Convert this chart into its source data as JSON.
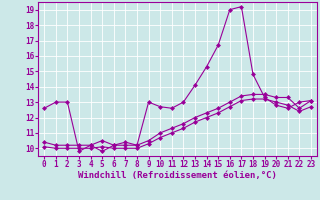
{
  "bg_color": "#cce8e8",
  "line_color": "#990099",
  "xlim": [
    -0.5,
    23.5
  ],
  "ylim": [
    9.5,
    19.5
  ],
  "xticks": [
    0,
    1,
    2,
    3,
    4,
    5,
    6,
    7,
    8,
    9,
    10,
    11,
    12,
    13,
    14,
    15,
    16,
    17,
    18,
    19,
    20,
    21,
    22,
    23
  ],
  "yticks": [
    10,
    11,
    12,
    13,
    14,
    15,
    16,
    17,
    18,
    19
  ],
  "line1_x": [
    0,
    1,
    2,
    3,
    4,
    5,
    6,
    7,
    8,
    9,
    10,
    11,
    12,
    13,
    14,
    15,
    16,
    17,
    18,
    19,
    20,
    21,
    22,
    23
  ],
  "line1_y": [
    12.6,
    13.0,
    13.0,
    9.8,
    10.2,
    9.8,
    10.2,
    10.4,
    10.2,
    13.0,
    12.7,
    12.6,
    13.0,
    14.1,
    15.3,
    16.7,
    19.0,
    19.2,
    14.8,
    13.3,
    12.8,
    12.6,
    13.0,
    13.1
  ],
  "line2_x": [
    0,
    1,
    2,
    3,
    4,
    5,
    6,
    7,
    8,
    9,
    10,
    11,
    12,
    13,
    14,
    15,
    16,
    17,
    18,
    19,
    20,
    21,
    22,
    23
  ],
  "line2_y": [
    10.4,
    10.2,
    10.2,
    10.2,
    10.2,
    10.5,
    10.2,
    10.2,
    10.2,
    10.5,
    11.0,
    11.3,
    11.6,
    12.0,
    12.3,
    12.6,
    13.0,
    13.4,
    13.5,
    13.5,
    13.3,
    13.3,
    12.6,
    13.1
  ],
  "line3_x": [
    0,
    1,
    2,
    3,
    4,
    5,
    6,
    7,
    8,
    9,
    10,
    11,
    12,
    13,
    14,
    15,
    16,
    17,
    18,
    19,
    20,
    21,
    22,
    23
  ],
  "line3_y": [
    10.1,
    10.0,
    10.0,
    10.0,
    10.0,
    10.1,
    10.0,
    10.0,
    10.0,
    10.3,
    10.7,
    11.0,
    11.3,
    11.7,
    12.0,
    12.3,
    12.7,
    13.1,
    13.2,
    13.2,
    13.0,
    12.8,
    12.4,
    12.7
  ],
  "xlabel": "Windchill (Refroidissement éolien,°C)",
  "marker": "D",
  "markersize": 2.0,
  "linewidth": 0.8,
  "tick_fontsize": 5.5,
  "xlabel_fontsize": 6.5
}
